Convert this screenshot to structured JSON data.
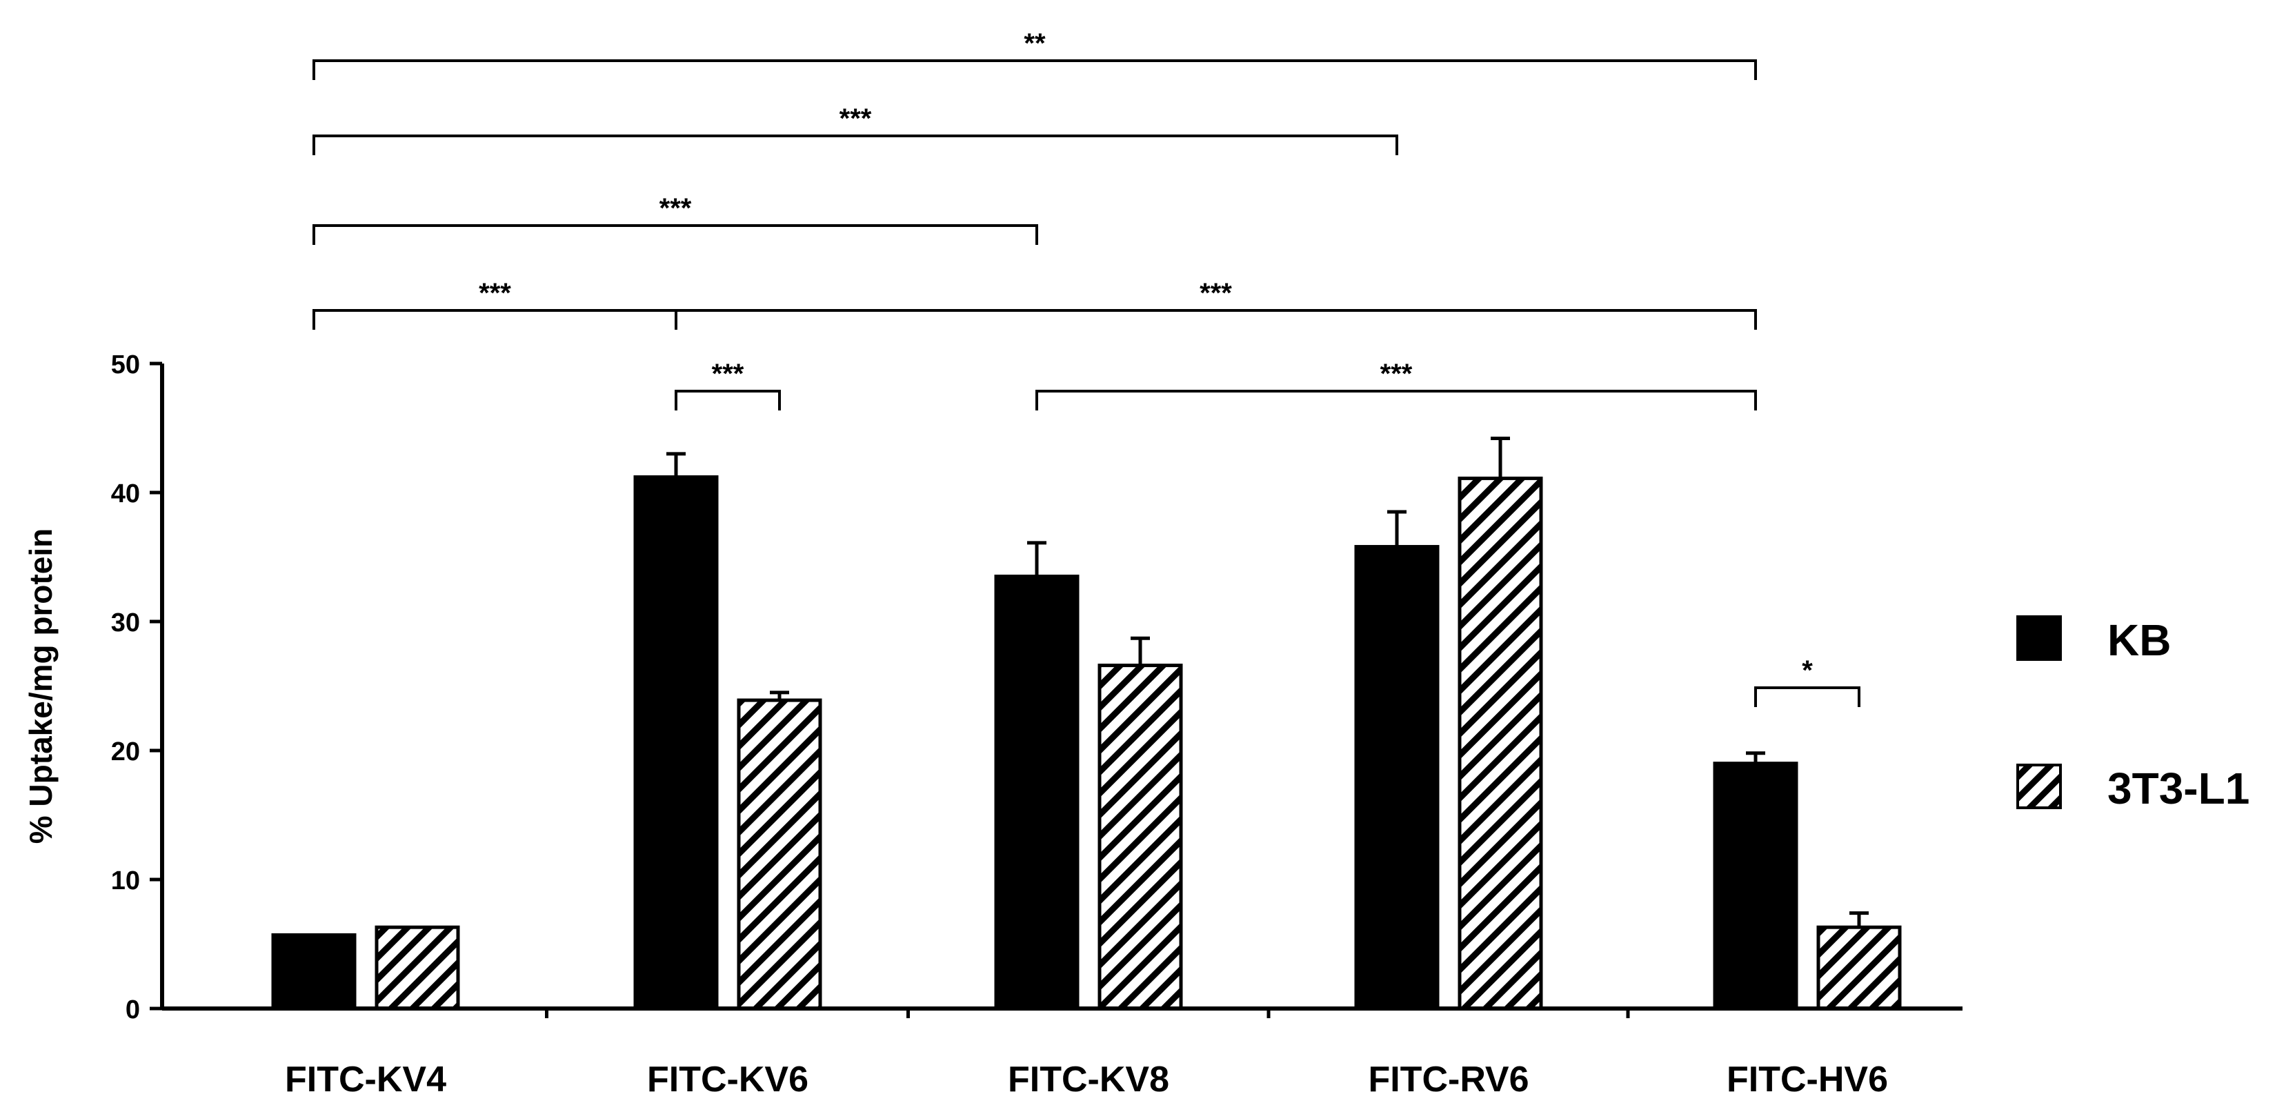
{
  "chart_data": {
    "type": "bar",
    "title": "",
    "xlabel": "",
    "ylabel": "% Uptake/mg protein",
    "ylim": [
      0,
      50
    ],
    "yticks": [
      "0",
      "10",
      "20",
      "30",
      "40",
      "50"
    ],
    "grid": false,
    "legend_position": "right",
    "categories": [
      "FITC-KV4",
      "FITC-KV6",
      "FITC-KV8",
      "FITC-RV6",
      "FITC-HV6"
    ],
    "series": [
      {
        "name": "KB",
        "pattern": "solid",
        "values": [
          5.7,
          41.2,
          33.5,
          35.8,
          19.0
        ],
        "errors": [
          0,
          1.8,
          2.6,
          2.7,
          0.8
        ]
      },
      {
        "name": "3T3-L1",
        "pattern": "hatched",
        "values": [
          6.3,
          23.9,
          26.6,
          41.1,
          6.3
        ],
        "errors": [
          0,
          0.6,
          2.1,
          3.1,
          1.1
        ]
      }
    ],
    "significance": [
      {
        "label": "**",
        "from": [
          0,
          "KB"
        ],
        "to": [
          4,
          "KB"
        ]
      },
      {
        "label": "***",
        "from": [
          0,
          "KB"
        ],
        "to": [
          3,
          "KB"
        ]
      },
      {
        "label": "***",
        "from": [
          0,
          "KB"
        ],
        "to": [
          2,
          "KB"
        ]
      },
      {
        "label": "***",
        "from": [
          0,
          "KB"
        ],
        "to": [
          1,
          "KB"
        ]
      },
      {
        "label": "***",
        "from": [
          1,
          "KB"
        ],
        "to": [
          4,
          "KB"
        ]
      },
      {
        "label": "***",
        "from": [
          1,
          "KB"
        ],
        "to": [
          1,
          "3T3-L1"
        ]
      },
      {
        "label": "***",
        "from": [
          2,
          "KB"
        ],
        "to": [
          4,
          "KB"
        ]
      },
      {
        "label": "*",
        "from": [
          4,
          "KB"
        ],
        "to": [
          4,
          "3T3-L1"
        ]
      }
    ],
    "colors": {
      "bar": "#000000",
      "axis": "#000000",
      "hatch_bg": "#ffffff"
    }
  }
}
